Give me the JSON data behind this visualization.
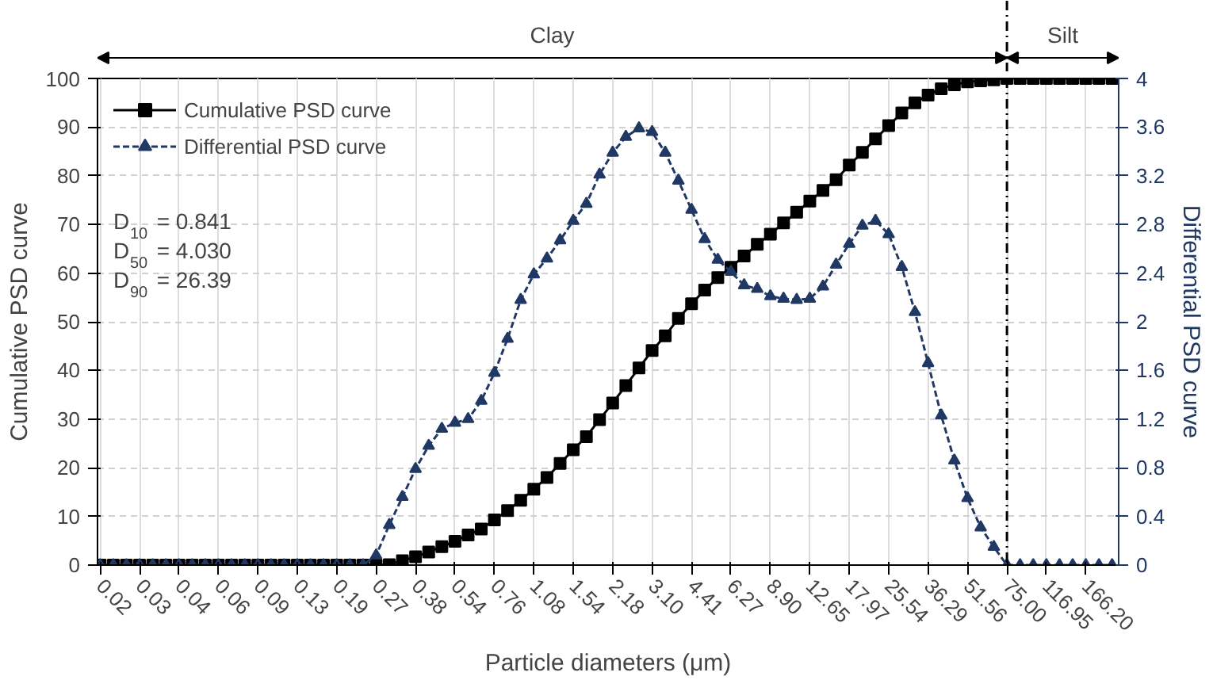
{
  "chart_data": {
    "type": "line",
    "xlabel": "Particle diameters (μm)",
    "ylabel": "Cumulative PSD curve",
    "y2label": "Differential PSD curve",
    "categories": [
      "0.02",
      null,
      null,
      "0.03",
      null,
      null,
      "0.04",
      null,
      null,
      "0.06",
      null,
      null,
      "0.09",
      null,
      null,
      "0.13",
      null,
      null,
      "0.19",
      null,
      null,
      "0.27",
      null,
      null,
      "0.38",
      null,
      null,
      "0.54",
      null,
      null,
      "0.76",
      null,
      null,
      "1.08",
      null,
      null,
      "1.54",
      null,
      null,
      "2.18",
      null,
      null,
      "3.10",
      null,
      null,
      "4.41",
      null,
      null,
      "6.27",
      null,
      null,
      "8.90",
      null,
      null,
      "12.65",
      null,
      null,
      "17.97",
      null,
      null,
      "25.54",
      null,
      null,
      "36.29",
      null,
      null,
      "51.56",
      null,
      null,
      "75.00",
      null,
      null,
      "116.95",
      null,
      null,
      "166.20",
      null,
      null
    ],
    "series": [
      {
        "name": "Cumulative PSD curve",
        "color": "#000000",
        "marker": "square",
        "line_style": "solid",
        "values": [
          0,
          0,
          0,
          0,
          0,
          0,
          0,
          0,
          0,
          0,
          0,
          0,
          0,
          0,
          0,
          0,
          0,
          0,
          0,
          0,
          0,
          0,
          0.1,
          0.9,
          1.7,
          2.7,
          3.8,
          4.9,
          6.2,
          7.4,
          9.3,
          11.2,
          13.3,
          15.6,
          18.0,
          20.9,
          23.7,
          26.4,
          29.9,
          33.3,
          36.9,
          40.5,
          44.1,
          47.1,
          50.7,
          53.7,
          56.5,
          59.1,
          61.2,
          63.5,
          65.9,
          68.0,
          70.3,
          72.5,
          74.8,
          77.0,
          79.2,
          82.2,
          84.8,
          87.6,
          90.3,
          92.9,
          95.0,
          96.6,
          97.9,
          98.7,
          99.3,
          99.5,
          99.7,
          100,
          100,
          100,
          100,
          100,
          100,
          100,
          100,
          100
        ]
      },
      {
        "name": "Differential PSD curve",
        "color": "#203864",
        "marker": "triangle",
        "line_style": "dashed",
        "axis": "y2",
        "values": [
          0,
          0,
          0,
          0,
          0,
          0,
          0,
          0,
          0,
          0,
          0,
          0,
          0,
          0,
          0,
          0,
          0,
          0,
          0,
          0,
          0,
          0.08,
          0.33,
          0.56,
          0.79,
          0.98,
          1.12,
          1.17,
          1.2,
          1.35,
          1.58,
          1.86,
          2.18,
          2.39,
          2.52,
          2.67,
          2.83,
          2.97,
          3.21,
          3.39,
          3.52,
          3.59,
          3.56,
          3.39,
          3.16,
          2.92,
          2.68,
          2.51,
          2.41,
          2.3,
          2.27,
          2.21,
          2.19,
          2.18,
          2.19,
          2.29,
          2.47,
          2.64,
          2.79,
          2.83,
          2.72,
          2.45,
          2.08,
          1.66,
          1.23,
          0.86,
          0.55,
          0.31,
          0.15,
          0,
          0,
          0,
          0,
          0,
          0,
          0,
          0,
          0
        ]
      }
    ],
    "ylim": [
      0,
      100
    ],
    "yticks": [
      0,
      10,
      20,
      30,
      40,
      50,
      60,
      70,
      80,
      90,
      100
    ],
    "y2lim": [
      0,
      4
    ],
    "y2ticks": [
      0,
      {
        "value": 0.4,
        "label": "0.4"
      },
      {
        "value": 0.8,
        "label": "0.8"
      },
      {
        "value": 1.2,
        "label": "1.2"
      },
      {
        "value": 1.6,
        "label": "1.6"
      },
      2,
      {
        "value": 2.4,
        "label": "2.4"
      },
      {
        "value": 2.8,
        "label": "2.8"
      },
      {
        "value": 3.2,
        "label": "3.2"
      },
      {
        "value": 3.6,
        "label": "3.6"
      },
      4
    ],
    "ref_lines": [
      {
        "axis": "x",
        "value": "75.00",
        "line_style": "dashdot",
        "color": "#000000"
      }
    ],
    "annotations": [
      "Clay",
      "Silt",
      "D$_{10}$ = 0.841",
      "D$_{50}$ = 4.030",
      "D$_{90}$ = 26.39"
    ],
    "grid": true,
    "legend": "top left"
  }
}
